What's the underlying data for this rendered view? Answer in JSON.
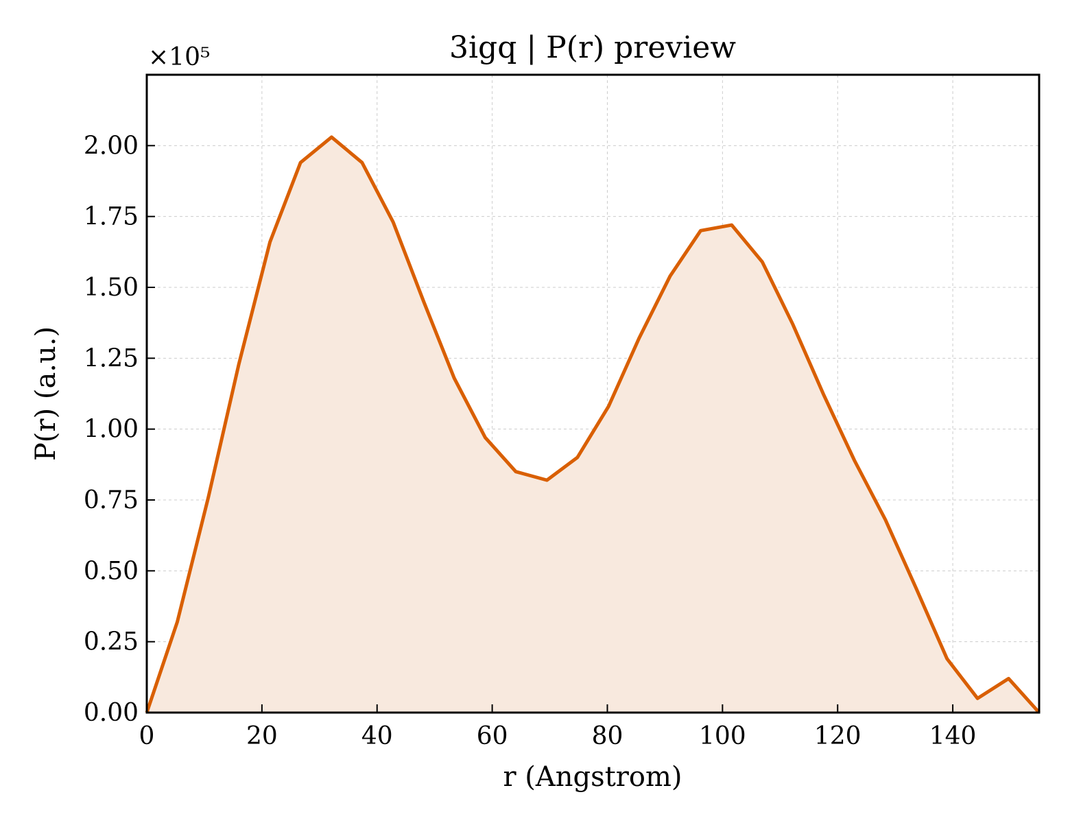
{
  "chart_data": {
    "type": "area",
    "title": "3igq | P(r) preview",
    "xlabel": "r (Angstrom)",
    "ylabel": "P(r) (a.u.)",
    "y_offset_label": "×10⁵",
    "xlim": [
      0,
      155
    ],
    "ylim": [
      0,
      2.25
    ],
    "y_scale_factor": 100000,
    "grid": true,
    "legend": "none",
    "x_ticks": [
      "0",
      "20",
      "40",
      "60",
      "80",
      "100",
      "120",
      "140"
    ],
    "x_tick_values": [
      0,
      20,
      40,
      60,
      80,
      100,
      120,
      140
    ],
    "y_ticks": [
      "0.00",
      "0.25",
      "0.50",
      "0.75",
      "1.00",
      "1.25",
      "1.50",
      "1.75",
      "2.00"
    ],
    "y_tick_values": [
      0,
      0.25,
      0.5,
      0.75,
      1.0,
      1.25,
      1.5,
      1.75,
      2.0
    ],
    "series": [
      {
        "color": "#d95f02",
        "fill": "#f8e9de",
        "x": [
          0,
          5.3,
          10.7,
          16.0,
          21.4,
          26.7,
          32.1,
          37.4,
          42.8,
          48.1,
          53.4,
          58.8,
          64.1,
          69.5,
          74.8,
          80.2,
          85.5,
          90.9,
          96.2,
          101.6,
          106.9,
          112.2,
          117.6,
          122.9,
          128.3,
          133.6,
          139.0,
          144.3,
          149.7,
          155.0
        ],
        "values": [
          0.0,
          0.32,
          0.76,
          1.23,
          1.66,
          1.94,
          2.03,
          1.94,
          1.73,
          1.45,
          1.18,
          0.97,
          0.85,
          0.82,
          0.9,
          1.08,
          1.32,
          1.54,
          1.7,
          1.72,
          1.59,
          1.37,
          1.12,
          0.89,
          0.68,
          0.44,
          0.19,
          0.05,
          0.12,
          0.0
        ]
      }
    ]
  }
}
